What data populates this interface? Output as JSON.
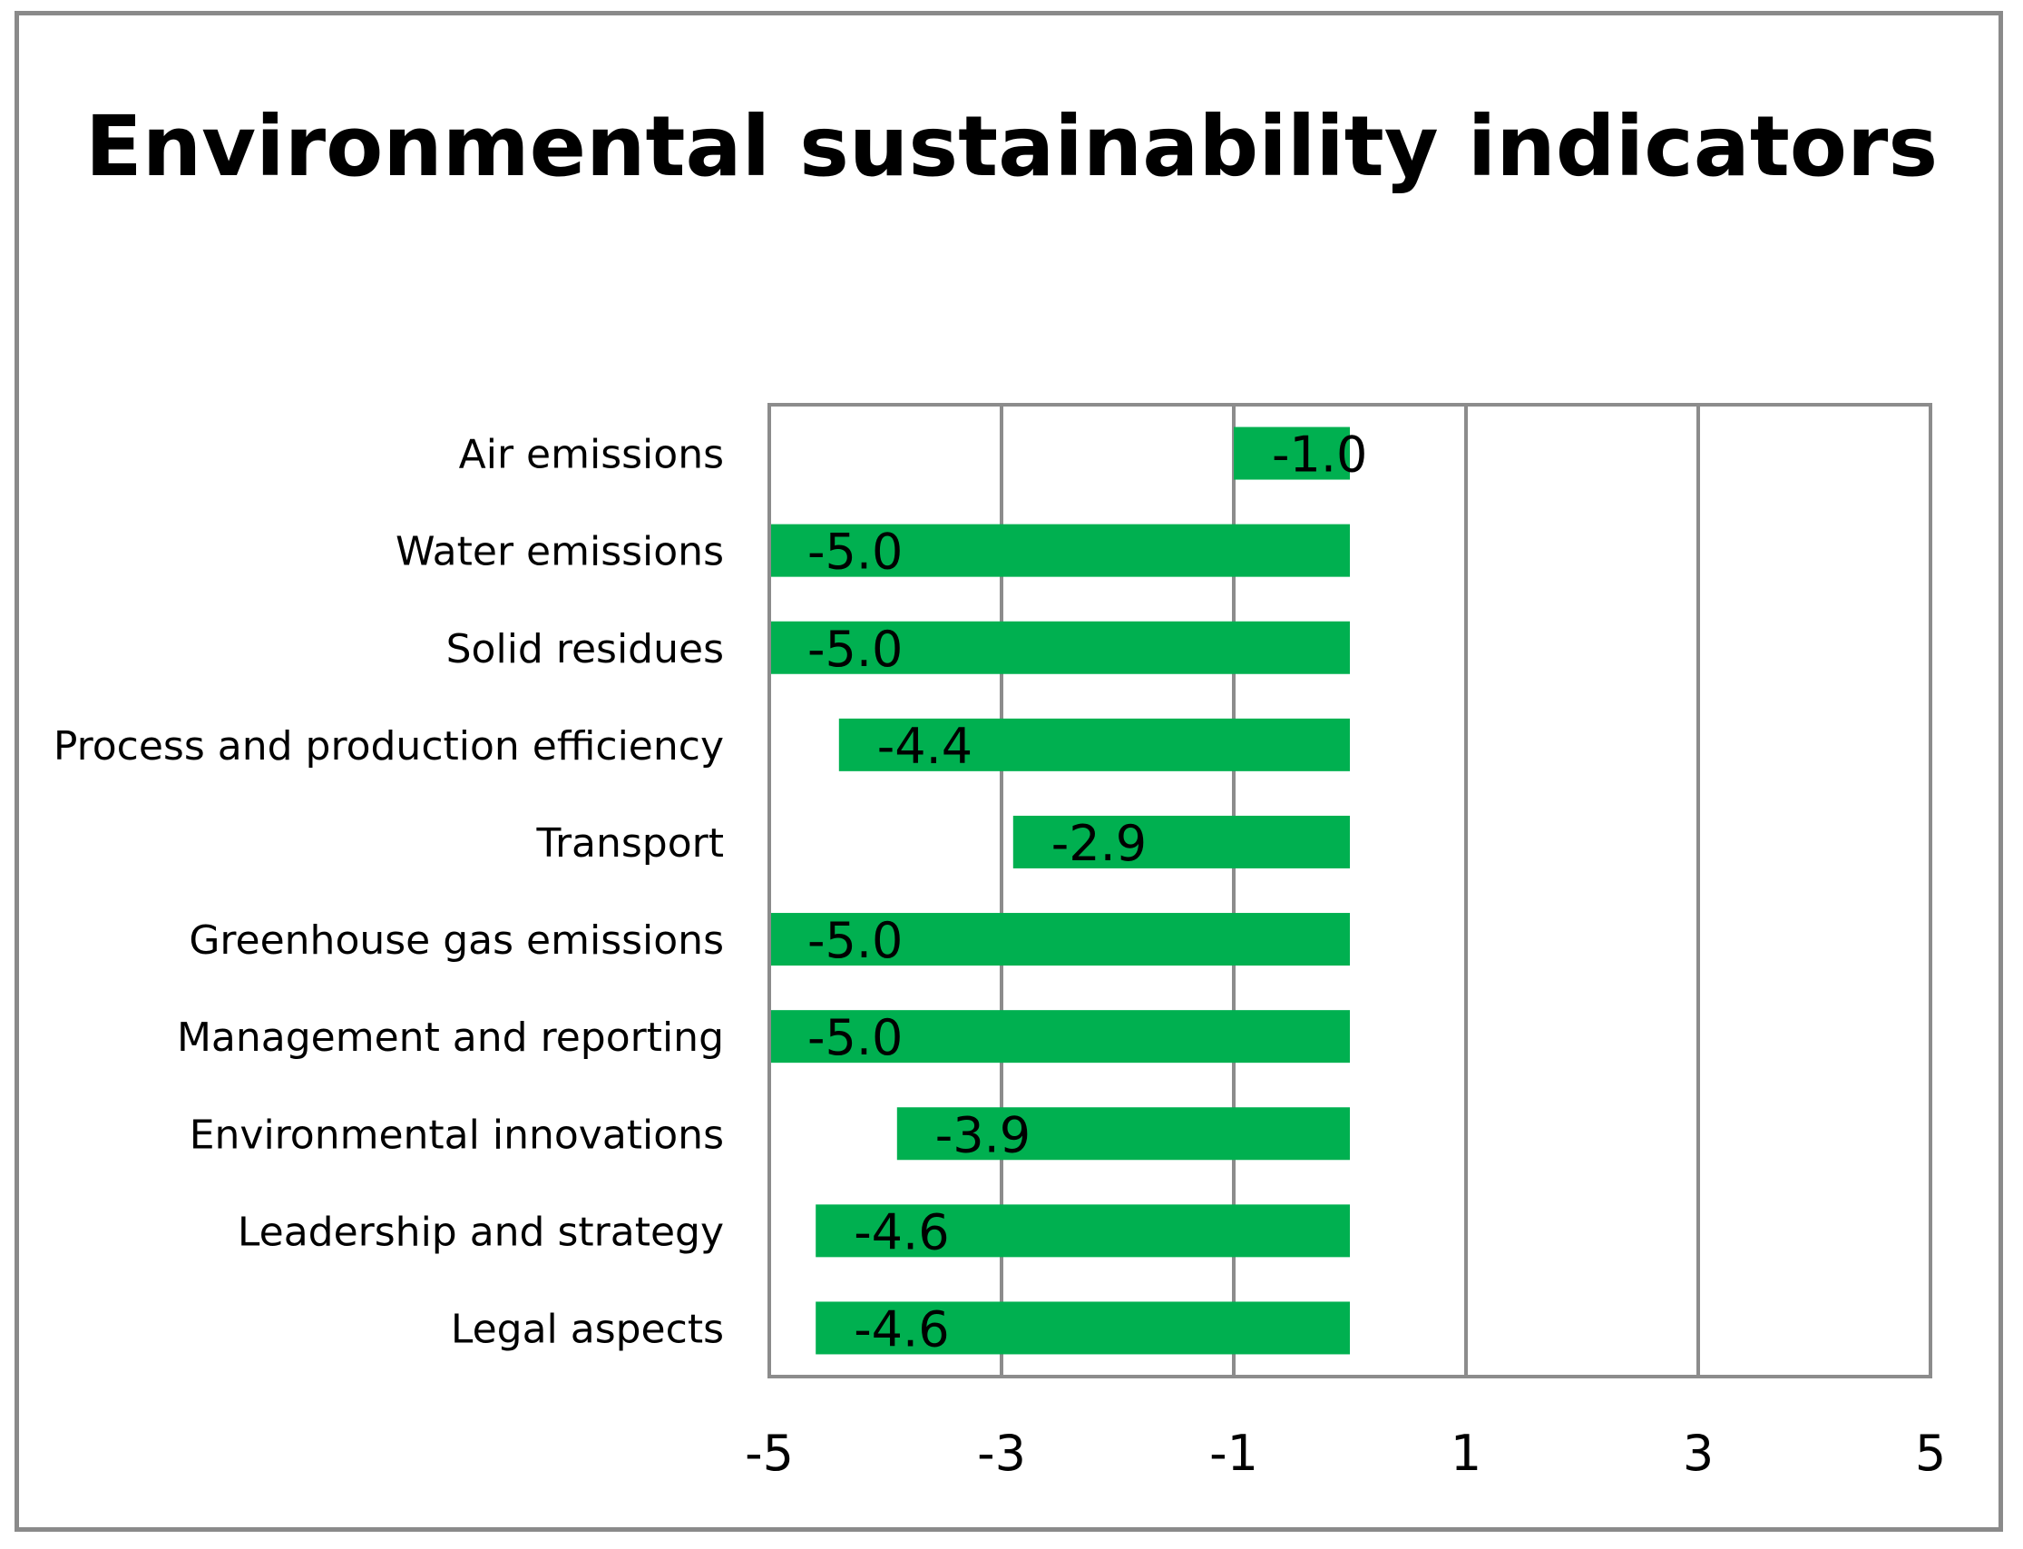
{
  "chart_data": {
    "type": "bar",
    "orientation": "horizontal",
    "title": "Environmental sustainability indicators",
    "categories": [
      "Air emissions",
      "Water emissions",
      "Solid residues",
      "Process and production efficiency",
      "Transport",
      "Greenhouse gas emissions",
      "Management and reporting",
      "Environmental innovations",
      "Leadership and strategy",
      "Legal aspects"
    ],
    "values": [
      -1.0,
      -5.0,
      -5.0,
      -4.4,
      -2.9,
      -5.0,
      -5.0,
      -3.9,
      -4.6,
      -4.6
    ],
    "data_labels": [
      "-1.0",
      "-5.0",
      "-5.0",
      "-4.4",
      "-2.9",
      "-5.0",
      "-5.0",
      "-3.9",
      "-4.6",
      "-4.6"
    ],
    "xlim": [
      -5,
      5
    ],
    "xticks": [
      -5,
      -3,
      -1,
      1,
      3,
      5
    ],
    "xtick_labels": [
      "-5",
      "-3",
      "-1",
      "1",
      "3",
      "5"
    ],
    "xlabel": "",
    "ylabel": "",
    "grid": true,
    "legend": "none",
    "bar_color": "#00b050",
    "grid_color": "#8c8c8c"
  }
}
